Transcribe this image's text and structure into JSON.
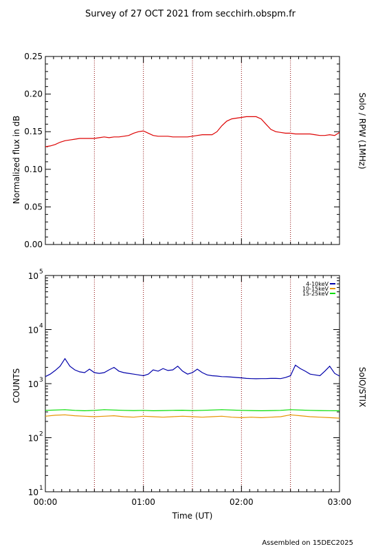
{
  "title": "Survey of 27 OCT 2021 from secchirh.obspm.fr",
  "footer": "Assembled on 15DEC2025",
  "colors": {
    "rpw": "#dd0000",
    "stix_4_10": "#0000aa",
    "stix_10_15": "#e69500",
    "stix_15_25": "#00dd00",
    "marker": "#880000"
  },
  "chart_data": [
    {
      "type": "line",
      "title": "",
      "xlabel": "",
      "ylabel": "Normalized flux in dB",
      "right_label": "Solo / RPW (1MHz)",
      "xlim_hours": [
        0,
        3
      ],
      "ylim": [
        0.0,
        0.25
      ],
      "yticks": [
        "0.00",
        "0.05",
        "0.10",
        "0.15",
        "0.20",
        "0.25"
      ],
      "marker_hours": [
        0.5,
        1.0,
        1.5,
        2.0,
        2.5
      ],
      "series": [
        {
          "color": "rpw",
          "x": [
            0.0,
            0.05,
            0.1,
            0.15,
            0.2,
            0.25,
            0.3,
            0.35,
            0.4,
            0.45,
            0.5,
            0.55,
            0.6,
            0.65,
            0.7,
            0.75,
            0.8,
            0.85,
            0.9,
            0.95,
            1.0,
            1.05,
            1.1,
            1.15,
            1.2,
            1.25,
            1.3,
            1.35,
            1.4,
            1.45,
            1.5,
            1.55,
            1.6,
            1.65,
            1.7,
            1.75,
            1.8,
            1.85,
            1.9,
            1.95,
            2.0,
            2.05,
            2.1,
            2.15,
            2.2,
            2.25,
            2.3,
            2.35,
            2.4,
            2.45,
            2.5,
            2.55,
            2.6,
            2.65,
            2.7,
            2.75,
            2.8,
            2.85,
            2.9,
            2.95,
            3.0
          ],
          "y": [
            0.13,
            0.131,
            0.133,
            0.136,
            0.138,
            0.139,
            0.14,
            0.141,
            0.141,
            0.141,
            0.141,
            0.142,
            0.143,
            0.142,
            0.143,
            0.143,
            0.144,
            0.145,
            0.148,
            0.15,
            0.151,
            0.148,
            0.145,
            0.144,
            0.144,
            0.144,
            0.143,
            0.143,
            0.143,
            0.143,
            0.144,
            0.145,
            0.146,
            0.146,
            0.146,
            0.15,
            0.158,
            0.164,
            0.167,
            0.168,
            0.169,
            0.17,
            0.17,
            0.17,
            0.167,
            0.16,
            0.153,
            0.15,
            0.149,
            0.148,
            0.148,
            0.147,
            0.147,
            0.147,
            0.147,
            0.146,
            0.145,
            0.145,
            0.146,
            0.145,
            0.149
          ]
        }
      ]
    },
    {
      "type": "line",
      "title": "",
      "xlabel": "Time (UT)",
      "ylabel": "COUNTS",
      "right_label": "SolO/STIX",
      "yscale": "log",
      "xlim_hours": [
        0,
        3
      ],
      "ylim": [
        10,
        100000
      ],
      "yticks": [
        {
          "base": "10",
          "exp": "1"
        },
        {
          "base": "10",
          "exp": "2"
        },
        {
          "base": "10",
          "exp": "3"
        },
        {
          "base": "10",
          "exp": "4"
        },
        {
          "base": "10",
          "exp": "5"
        }
      ],
      "xticks": [
        "00:00",
        "01:00",
        "02:00",
        "03:00"
      ],
      "marker_hours": [
        0.5,
        1.0,
        1.5,
        2.0,
        2.5
      ],
      "legend_position": "top-right",
      "series": [
        {
          "name": "4-10keV",
          "color": "stix_4_10",
          "x": [
            0.0,
            0.05,
            0.1,
            0.15,
            0.2,
            0.25,
            0.3,
            0.35,
            0.4,
            0.45,
            0.5,
            0.55,
            0.6,
            0.65,
            0.7,
            0.75,
            0.8,
            0.85,
            0.9,
            0.95,
            1.0,
            1.05,
            1.1,
            1.15,
            1.2,
            1.25,
            1.3,
            1.35,
            1.4,
            1.45,
            1.5,
            1.55,
            1.6,
            1.65,
            1.7,
            1.75,
            1.8,
            1.85,
            1.9,
            1.95,
            2.0,
            2.05,
            2.1,
            2.15,
            2.2,
            2.25,
            2.3,
            2.35,
            2.4,
            2.45,
            2.5,
            2.55,
            2.6,
            2.65,
            2.7,
            2.75,
            2.8,
            2.85,
            2.9,
            2.95,
            3.0
          ],
          "y": [
            1350,
            1500,
            1750,
            2100,
            2900,
            2100,
            1800,
            1650,
            1600,
            1850,
            1600,
            1550,
            1600,
            1800,
            2000,
            1700,
            1600,
            1550,
            1500,
            1450,
            1400,
            1500,
            1800,
            1700,
            1900,
            1750,
            1800,
            2100,
            1700,
            1500,
            1600,
            1850,
            1600,
            1450,
            1400,
            1380,
            1350,
            1340,
            1320,
            1300,
            1280,
            1250,
            1240,
            1230,
            1240,
            1240,
            1250,
            1250,
            1240,
            1300,
            1400,
            2200,
            1900,
            1700,
            1500,
            1450,
            1400,
            1700,
            2100,
            1550,
            1380
          ]
        },
        {
          "name": "10-15keV",
          "color": "stix_10_15",
          "x": [
            0.0,
            0.1,
            0.2,
            0.3,
            0.4,
            0.5,
            0.6,
            0.7,
            0.8,
            0.9,
            1.0,
            1.1,
            1.2,
            1.3,
            1.4,
            1.5,
            1.6,
            1.7,
            1.8,
            1.9,
            2.0,
            2.1,
            2.2,
            2.3,
            2.4,
            2.5,
            2.6,
            2.7,
            2.8,
            2.9,
            3.0
          ],
          "y": [
            250,
            260,
            265,
            255,
            250,
            245,
            250,
            255,
            245,
            240,
            250,
            245,
            240,
            245,
            250,
            245,
            240,
            245,
            250,
            240,
            235,
            240,
            235,
            240,
            245,
            265,
            255,
            245,
            240,
            235,
            230
          ]
        },
        {
          "name": "15-25keV",
          "color": "stix_15_25",
          "x": [
            0.0,
            0.1,
            0.2,
            0.3,
            0.4,
            0.5,
            0.6,
            0.7,
            0.8,
            0.9,
            1.0,
            1.1,
            1.2,
            1.3,
            1.4,
            1.5,
            1.6,
            1.7,
            1.8,
            1.9,
            2.0,
            2.1,
            2.2,
            2.3,
            2.4,
            2.5,
            2.6,
            2.7,
            2.8,
            2.9,
            3.0
          ],
          "y": [
            320,
            325,
            330,
            320,
            315,
            320,
            330,
            325,
            320,
            318,
            320,
            315,
            318,
            320,
            322,
            318,
            320,
            325,
            330,
            325,
            320,
            318,
            315,
            318,
            320,
            330,
            325,
            320,
            318,
            316,
            315
          ]
        }
      ]
    }
  ]
}
